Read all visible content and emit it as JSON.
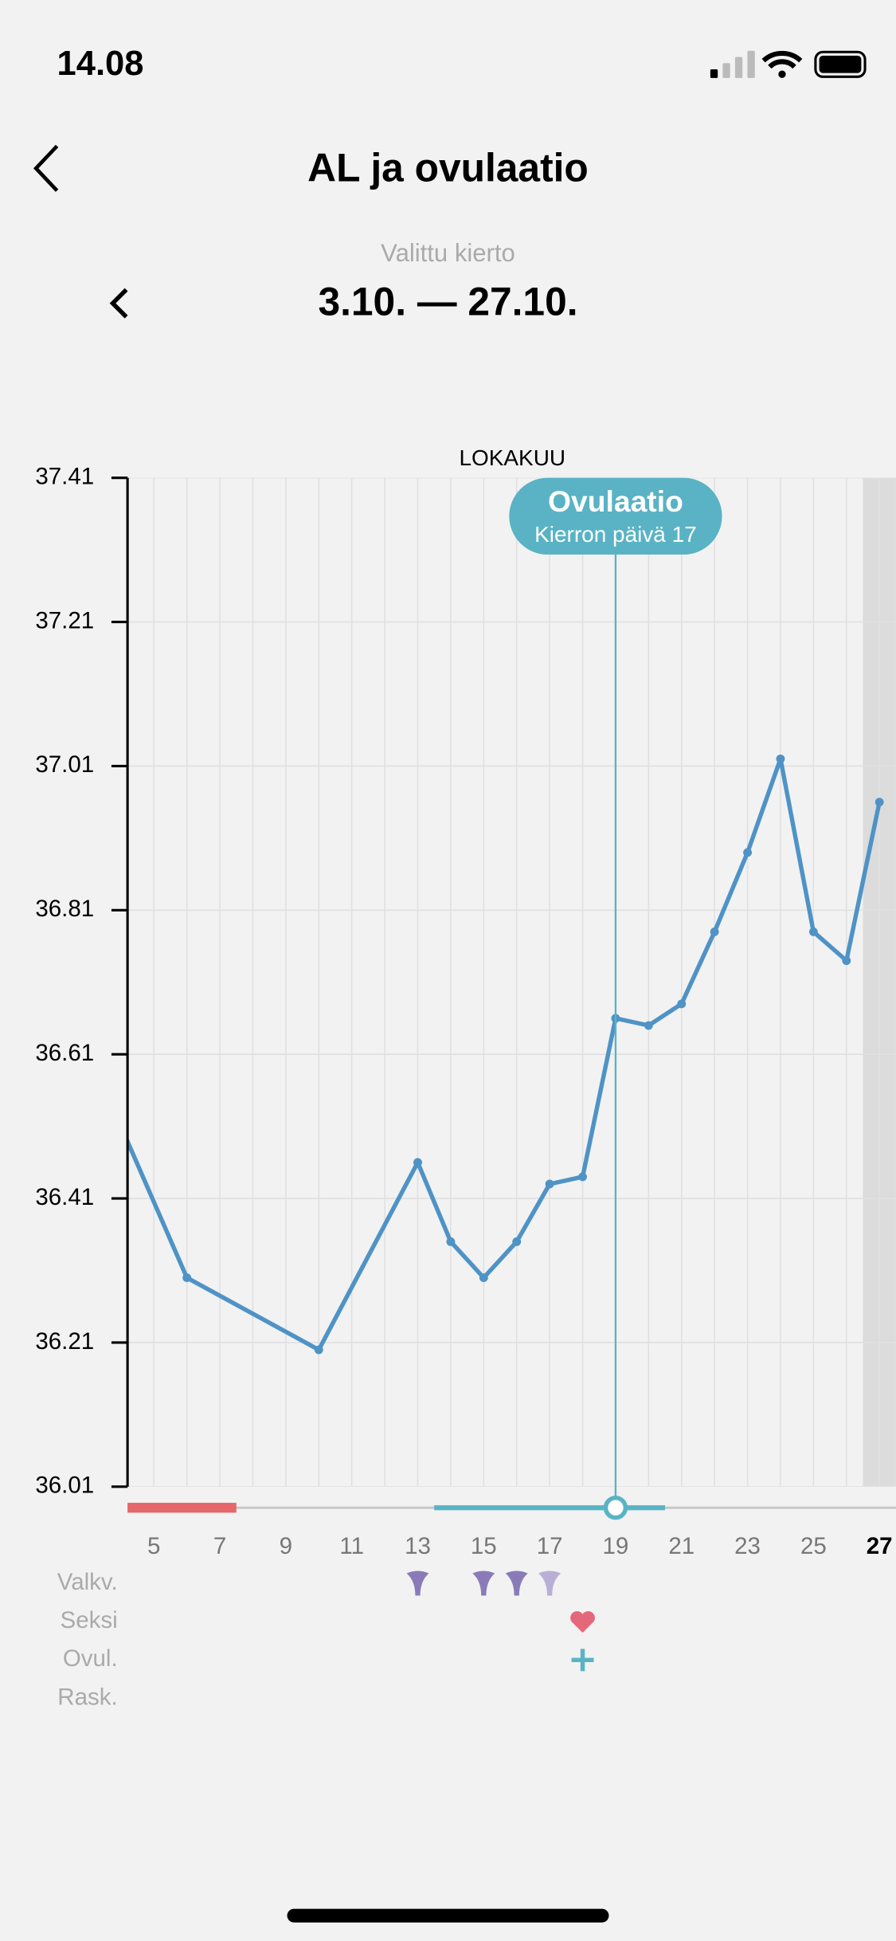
{
  "status_bar": {
    "time": "14.08"
  },
  "header": {
    "title": "AL ja ovulaatio",
    "cycle_caption": "Valittu kierto",
    "cycle_range": "3.10. — 27.10."
  },
  "chart_data": {
    "type": "line",
    "title": "LOKAKUU",
    "x": [
      4,
      6,
      10,
      13,
      14,
      15,
      16,
      17,
      18,
      19,
      20,
      21,
      22,
      23,
      24,
      25,
      26,
      27
    ],
    "series": [
      {
        "name": "AL",
        "color": "#4f93c6",
        "values": [
          36.51,
          36.3,
          36.2,
          36.46,
          36.35,
          36.3,
          36.35,
          36.43,
          36.44,
          36.66,
          36.65,
          36.68,
          36.78,
          36.89,
          37.02,
          36.78,
          36.74,
          36.96
        ]
      }
    ],
    "xlim": [
      4.2,
      27.5
    ],
    "xticks": [
      5,
      7,
      9,
      11,
      13,
      15,
      17,
      19,
      21,
      23,
      25,
      27
    ],
    "ylim": [
      36.01,
      37.41
    ],
    "yticks": [
      37.41,
      37.21,
      37.01,
      36.81,
      36.61,
      36.41,
      36.21,
      36.01
    ],
    "grid": true,
    "today": 27,
    "ovulation_day": 19,
    "ovulation_label": "Ovulaatio",
    "ovulation_sublabel": "Kierron päivä 17",
    "period_range": [
      4,
      7
    ],
    "fertile_range": [
      14,
      20
    ],
    "rows": [
      {
        "label": "Valkv.",
        "days": [
          13,
          15,
          16
        ],
        "light_days": [
          17
        ]
      },
      {
        "label": "Seksi",
        "days": [
          18
        ]
      },
      {
        "label": "Ovul.",
        "days": [
          18
        ]
      },
      {
        "label": "Rask.",
        "days": []
      }
    ]
  }
}
